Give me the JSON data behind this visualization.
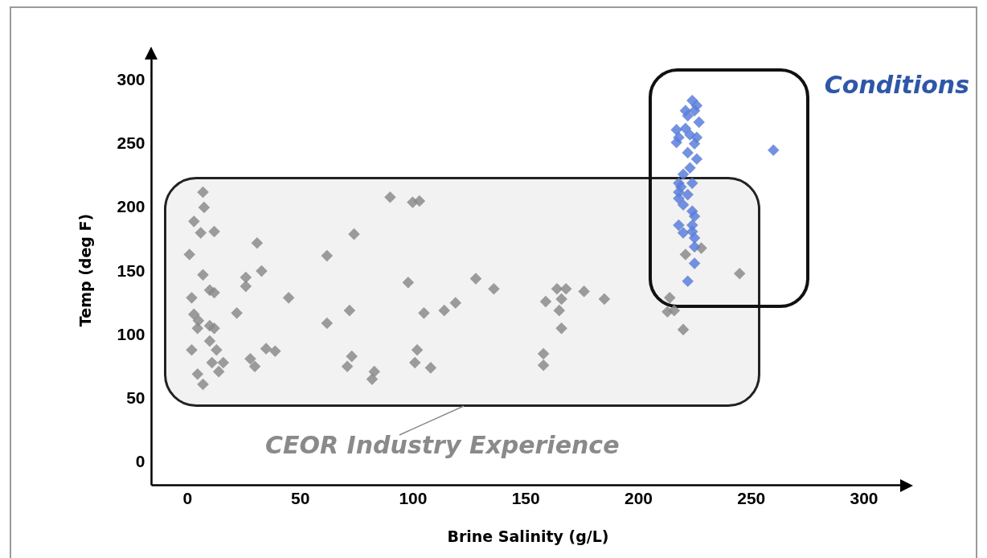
{
  "chart_data": {
    "type": "scatter",
    "xlabel": "Brine Salinity (g/L)",
    "ylabel": "Temp (deg F)",
    "xlim": [
      -16,
      318
    ],
    "ylim": [
      -18,
      320
    ],
    "xticks": [
      0,
      50,
      100,
      150,
      200,
      250,
      300
    ],
    "yticks": [
      0,
      50,
      100,
      150,
      200,
      250,
      300
    ],
    "grid": false,
    "marker": "diamond",
    "annotations": [
      "CEOR Industry Experience",
      "Conditions"
    ],
    "series": [
      {
        "color": "#8c8c8c",
        "x": [
          7,
          7.5,
          3,
          6,
          12,
          1,
          7,
          2,
          10,
          12,
          3,
          5,
          10,
          4.6,
          12,
          2,
          10,
          13,
          4.6,
          7,
          11,
          16,
          14,
          22,
          31,
          33,
          26,
          26,
          28,
          30,
          39,
          35,
          45,
          62,
          62,
          74,
          72,
          71,
          73,
          83,
          82,
          90,
          100,
          103,
          98,
          102,
          101,
          108,
          105,
          114,
          119,
          128,
          136,
          159,
          158,
          158,
          164,
          168,
          166,
          165,
          166,
          176,
          185,
          214,
          213,
          216,
          220,
          221,
          228,
          245
        ],
        "values": [
          212,
          200,
          189,
          180,
          181,
          163,
          147,
          129,
          135,
          133,
          116,
          111,
          107,
          105,
          105,
          88,
          95,
          88,
          69,
          61,
          78,
          78,
          71,
          117,
          172,
          150,
          145,
          138,
          81,
          75,
          87,
          89,
          129,
          162,
          109,
          179,
          119,
          75,
          83,
          71,
          65,
          208,
          204,
          205,
          141,
          88,
          78,
          74,
          117,
          119,
          125,
          144,
          136,
          126,
          85,
          76,
          136,
          136,
          128,
          119,
          105,
          134,
          128,
          129,
          118,
          119,
          104,
          163,
          168,
          148
        ]
      },
      {
        "color": "#5b7fe0",
        "x": [
          260,
          224,
          226,
          221,
          225,
          222,
          227,
          217,
          221,
          223,
          218,
          226,
          217,
          225,
          222,
          226,
          223,
          220,
          218,
          219,
          224,
          218,
          222,
          218,
          220,
          224,
          225,
          218,
          224,
          220,
          224,
          225,
          225,
          225,
          222
        ],
        "values": [
          245,
          284,
          280,
          276,
          276,
          272,
          267,
          261,
          262,
          257,
          255,
          255,
          251,
          250,
          243,
          238,
          231,
          226,
          219,
          216,
          219,
          212,
          210,
          207,
          202,
          197,
          193,
          186,
          186,
          180,
          181,
          176,
          169,
          156,
          142
        ]
      }
    ]
  }
}
